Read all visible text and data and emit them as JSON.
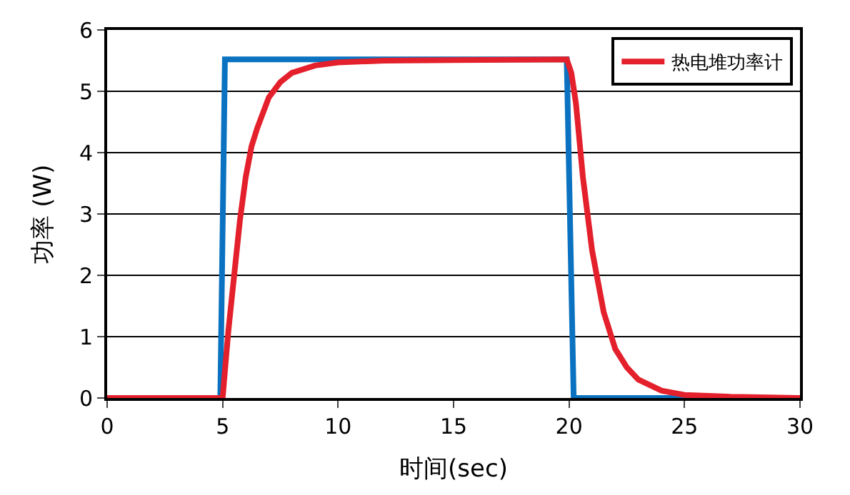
{
  "chart_data": {
    "type": "line",
    "xlabel": "时间(sec)",
    "ylabel": "功率 (W)",
    "xlim": [
      0,
      30
    ],
    "xticks": [
      0,
      5,
      10,
      15,
      20,
      25,
      30
    ],
    "ylim": [
      0,
      6
    ],
    "yticks": [
      0,
      1,
      2,
      3,
      4,
      5,
      6
    ],
    "grid": "y",
    "legend": "top right",
    "series": [
      {
        "color": "#0a72c0",
        "x": [
          0,
          4.9,
          5.1,
          19.9,
          20.2,
          30
        ],
        "values": [
          0,
          0,
          5.52,
          5.52,
          0,
          0
        ]
      },
      {
        "name": "热电堆功率计",
        "color": "#e3202b",
        "x": [
          0,
          5,
          5.25,
          5.5,
          5.75,
          6,
          6.25,
          6.5,
          7,
          7.5,
          8,
          9,
          10,
          12,
          15,
          19.9,
          20.1,
          20.3,
          20.6,
          21,
          21.5,
          22,
          22.5,
          23,
          24,
          25,
          27,
          30
        ],
        "values": [
          0,
          0,
          1.1,
          2.0,
          2.9,
          3.6,
          4.1,
          4.4,
          4.9,
          5.15,
          5.3,
          5.42,
          5.47,
          5.5,
          5.51,
          5.52,
          5.3,
          4.8,
          3.6,
          2.4,
          1.4,
          0.8,
          0.5,
          0.3,
          0.12,
          0.05,
          0.02,
          0
        ]
      }
    ]
  }
}
